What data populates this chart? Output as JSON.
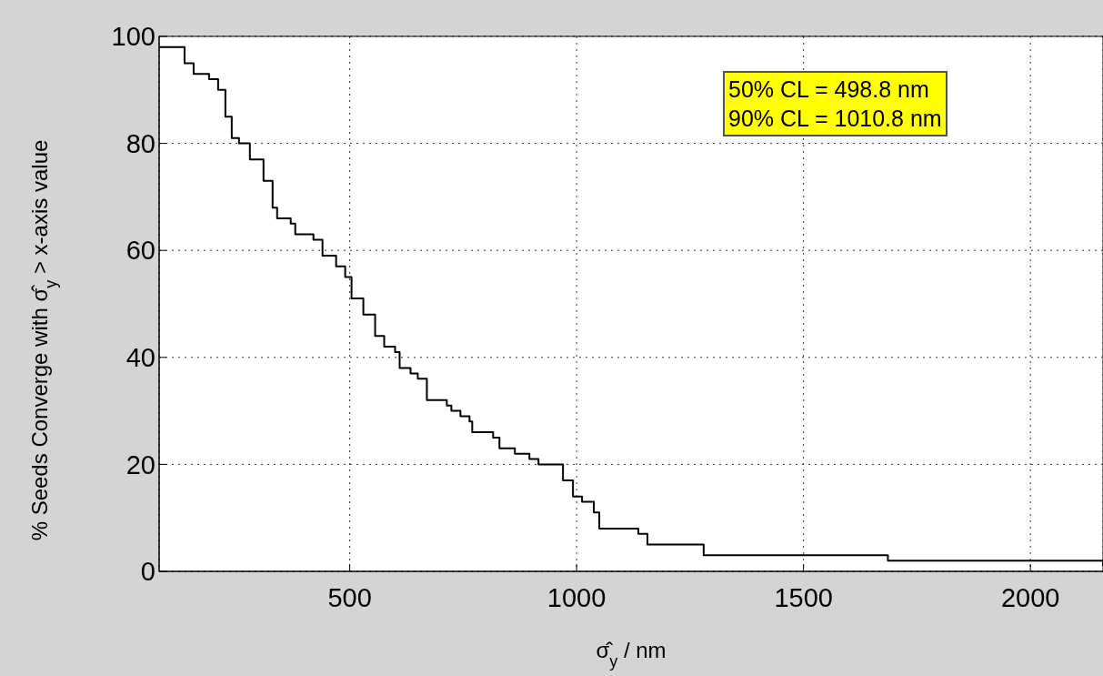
{
  "chart_data": {
    "type": "step",
    "xlabel": "σ̂$_{y}$ / nm",
    "ylabel": "% Seeds Converge with σ̂$_{y}$ > x-axis value",
    "annotations": [
      "50% CL = 498.8 nm",
      "90% CL = 1010.8 nm"
    ],
    "x": [
      80,
      136,
      156,
      190,
      210,
      226,
      240,
      256,
      280,
      310,
      330,
      340,
      370,
      380,
      420,
      440,
      470,
      490,
      504,
      530,
      556,
      576,
      600,
      610,
      626,
      634,
      650,
      670,
      714,
      724,
      744,
      764,
      770,
      816,
      830,
      864,
      896,
      916,
      936,
      970,
      992,
      1012,
      1038,
      1050,
      1136,
      1156,
      1272,
      1280,
      1678,
      1686,
      2160
    ],
    "series": [
      {
        "color": "#000000",
        "values": [
          98,
          95,
          93,
          92,
          90,
          85,
          81,
          80,
          77,
          73,
          68,
          66,
          65,
          63,
          62,
          59,
          57,
          55,
          51,
          48,
          44,
          42,
          41,
          38,
          38,
          37,
          36,
          32,
          31,
          30,
          29,
          28,
          26,
          25,
          23,
          22,
          21,
          20,
          20,
          17,
          14,
          13,
          11,
          8,
          7,
          5,
          5,
          3,
          3,
          2,
          1
        ]
      }
    ],
    "xlim": [
      80,
      2160
    ],
    "ylim": [
      0,
      100
    ],
    "xticks": [
      500,
      1000,
      1500,
      2000
    ],
    "yticks": [
      0,
      20,
      40,
      60,
      80,
      100
    ],
    "grid": true,
    "line_style": "solid",
    "marker": "none"
  }
}
